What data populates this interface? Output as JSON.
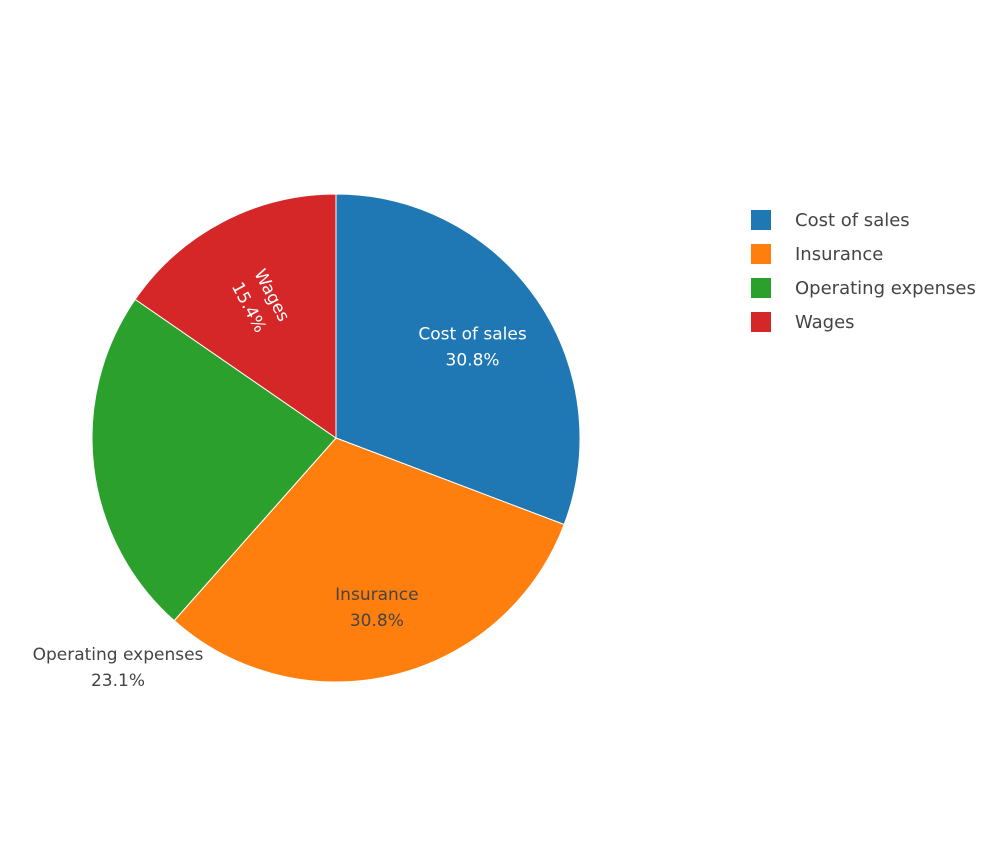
{
  "chart_data": {
    "type": "pie",
    "title": "",
    "legend": "right",
    "categories": [
      "Cost of sales",
      "Insurance",
      "Operating expenses",
      "Wages"
    ],
    "values": [
      30.8,
      30.8,
      23.1,
      15.4
    ],
    "labels": [
      "30.8%",
      "30.8%",
      "23.1%",
      "15.4%"
    ],
    "colors": [
      "#1f77b4",
      "#ff7f0e",
      "#2ca02c",
      "#d62728"
    ],
    "label_colors": [
      "#ffffff",
      "#444444",
      "#444444",
      "#ffffff"
    ]
  }
}
